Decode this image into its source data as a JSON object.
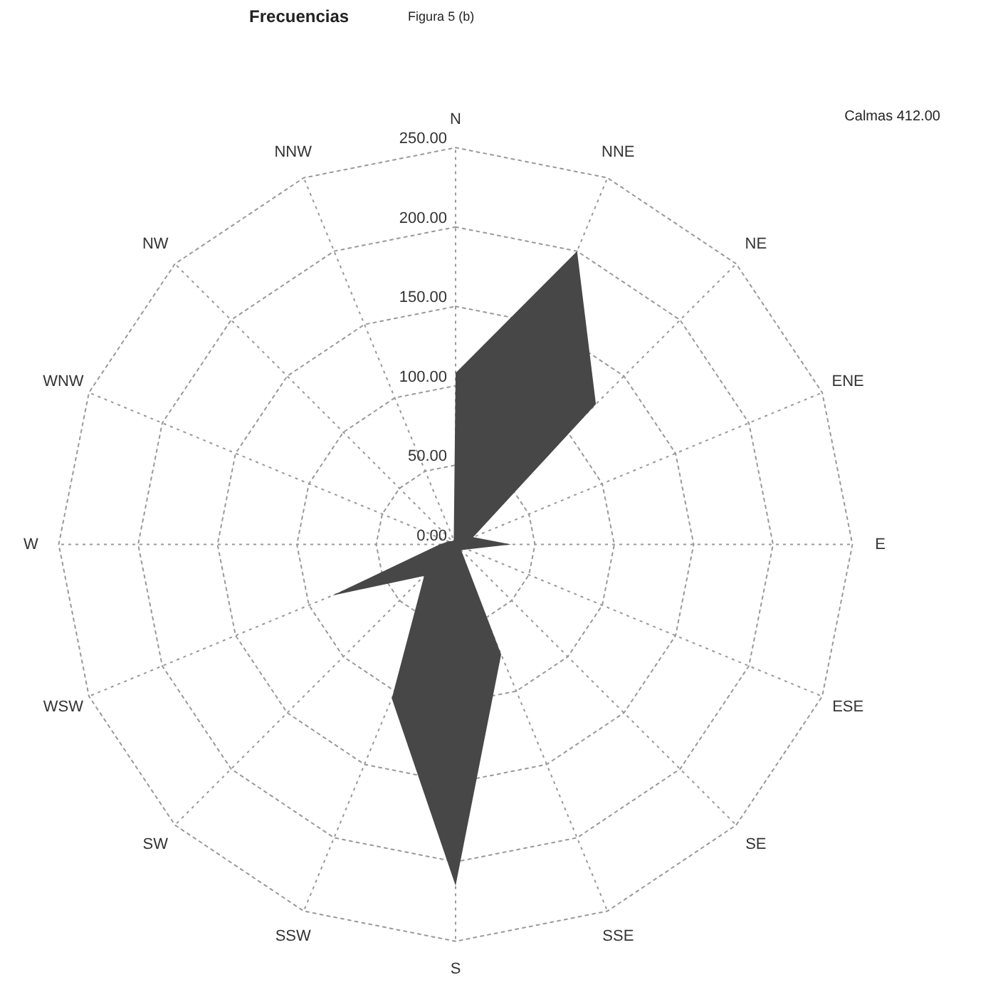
{
  "chart_data": {
    "type": "radar",
    "title": "Frecuencias",
    "subtitle": "Figura 5 (b)",
    "annotations": [
      "Calmas  412.00"
    ],
    "categories": [
      "N",
      "NNE",
      "NE",
      "ENE",
      "E",
      "ESE",
      "SE",
      "SSE",
      "S",
      "SSW",
      "SW",
      "WSW",
      "W",
      "WNW",
      "NW",
      "NNW"
    ],
    "series": [
      {
        "color": "#474747",
        "values": [
          108,
          200,
          125,
          12,
          35,
          8,
          5,
          75,
          215,
          105,
          28,
          84,
          10,
          5,
          3,
          3
        ]
      }
    ],
    "ylim": [
      0,
      250
    ],
    "yticks": [
      {
        "value": 0,
        "label": "0.00"
      },
      {
        "value": 50,
        "label": "50.00"
      },
      {
        "value": 100,
        "label": "100.00"
      },
      {
        "value": 150,
        "label": "150.00"
      },
      {
        "value": 200,
        "label": "200.00"
      },
      {
        "value": 250,
        "label": "250.00"
      }
    ],
    "grid": true
  }
}
